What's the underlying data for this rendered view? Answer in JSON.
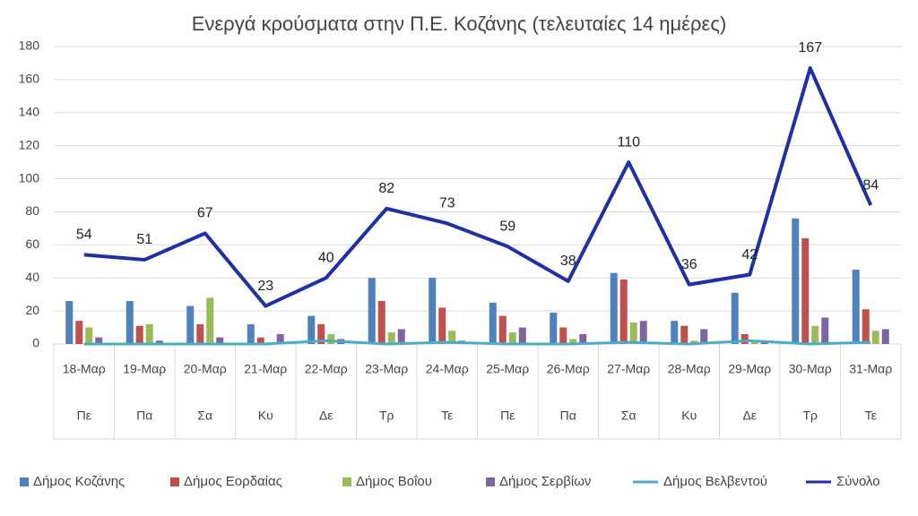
{
  "chart_data": {
    "type": "bar",
    "title": "Ενεργά κρούσματα στην Π.Ε. Κοζάνης (τελευταίες 14 ημέρες)",
    "categories": [
      "18-Μαρ",
      "19-Μαρ",
      "20-Μαρ",
      "21-Μαρ",
      "22-Μαρ",
      "23-Μαρ",
      "24-Μαρ",
      "25-Μαρ",
      "26-Μαρ",
      "27-Μαρ",
      "28-Μαρ",
      "29-Μαρ",
      "30-Μαρ",
      "31-Μαρ"
    ],
    "weekdays": [
      "Πε",
      "Πα",
      "Σα",
      "Κυ",
      "Δε",
      "Τρ",
      "Τε",
      "Πε",
      "Πα",
      "Σα",
      "Κυ",
      "Δε",
      "Τρ",
      "Τε"
    ],
    "series": [
      {
        "name": "Δήμος Κοζάνης",
        "type": "bar",
        "color": "#4f81bd",
        "values": [
          26,
          26,
          23,
          12,
          17,
          40,
          40,
          25,
          19,
          43,
          14,
          31,
          76,
          45
        ]
      },
      {
        "name": "Δήμος Εορδαίας",
        "type": "bar",
        "color": "#c0504d",
        "values": [
          14,
          11,
          12,
          4,
          12,
          26,
          22,
          17,
          10,
          39,
          11,
          6,
          64,
          21
        ]
      },
      {
        "name": "Δήμος Βοΐου",
        "type": "bar",
        "color": "#9bbb59",
        "values": [
          10,
          12,
          28,
          1,
          6,
          7,
          8,
          7,
          3,
          13,
          2,
          2,
          11,
          8
        ]
      },
      {
        "name": "Δήμος Σερβίων",
        "type": "bar",
        "color": "#8064a2",
        "values": [
          4,
          2,
          4,
          6,
          3,
          9,
          2,
          10,
          6,
          14,
          9,
          1,
          16,
          9
        ]
      },
      {
        "name": "Δήμος Βελβεντού",
        "type": "line",
        "color": "#4bacc6",
        "values": [
          0,
          0,
          0,
          0,
          2,
          0,
          1,
          0,
          0,
          1,
          0,
          2,
          0,
          1
        ]
      },
      {
        "name": "Σύνολο",
        "type": "line",
        "color": "#1f2fa6",
        "labels": true,
        "values": [
          54,
          51,
          67,
          23,
          40,
          82,
          73,
          59,
          38,
          110,
          36,
          42,
          167,
          84
        ]
      }
    ],
    "ylim": [
      0,
      180
    ],
    "yticks": [
      0,
      20,
      40,
      60,
      80,
      100,
      120,
      140,
      160,
      180
    ],
    "grid": true
  }
}
